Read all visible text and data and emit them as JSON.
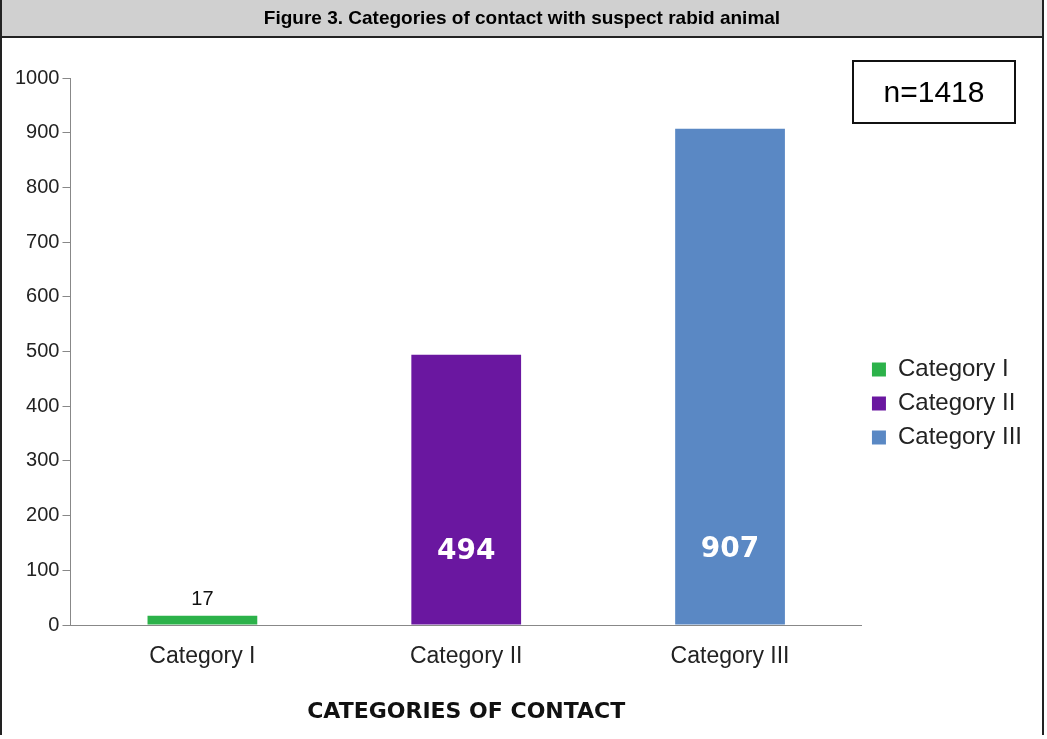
{
  "chart_data": {
    "type": "bar",
    "title": "Figure 3. Categories of contact with suspect rabid animal",
    "xlabel": "CATEGORIES OF CONTACT",
    "categories": [
      "Category I",
      "Category II",
      "Category III"
    ],
    "series": [
      {
        "name": "Category I",
        "color": "#2cb24a",
        "values": [
          17,
          null,
          null
        ]
      },
      {
        "name": "Category II",
        "color": "#6a17a0",
        "values": [
          null,
          494,
          null
        ]
      },
      {
        "name": "Category III",
        "color": "#5a88c4",
        "values": [
          null,
          null,
          907
        ]
      }
    ],
    "ylim": [
      0,
      1000
    ],
    "yticks": [
      0,
      100,
      200,
      300,
      400,
      500,
      600,
      700,
      800,
      900,
      1000
    ],
    "grid": false,
    "legend": "right",
    "data_labels": true,
    "annotations": [
      "n=1418"
    ]
  }
}
